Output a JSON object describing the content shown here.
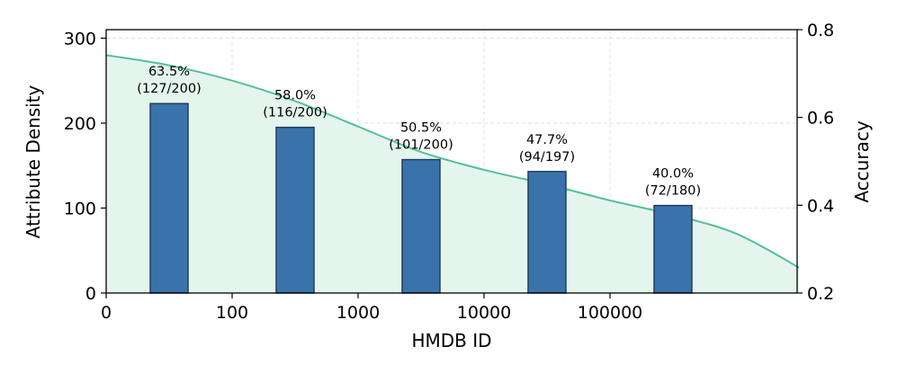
{
  "chart_data": {
    "type": "bar",
    "xlabel": "HMDB ID",
    "ylabel_left": "Attribute Density",
    "ylabel_right": "Accuracy",
    "x_ticks": [
      "0",
      "100",
      "1000",
      "10000",
      "100000"
    ],
    "y_left_ticks": [
      "0",
      "100",
      "200",
      "300"
    ],
    "y_right_ticks": [
      "0.2",
      "0.4",
      "0.6",
      "0.8"
    ],
    "ylim_left": [
      0,
      310
    ],
    "ylim_right": [
      0.2,
      0.8
    ],
    "grid": true,
    "bars": [
      {
        "x_tick_index": 0.5,
        "density": 223,
        "accuracy_label": "63.5%",
        "count_label": "(127/200)"
      },
      {
        "x_tick_index": 1.5,
        "density": 195,
        "accuracy_label": "58.0%",
        "count_label": "(116/200)"
      },
      {
        "x_tick_index": 2.5,
        "density": 157,
        "accuracy_label": "50.5%",
        "count_label": "(101/200)"
      },
      {
        "x_tick_index": 3.5,
        "density": 143,
        "accuracy_label": "47.7%",
        "count_label": "(94/197)"
      },
      {
        "x_tick_index": 4.5,
        "density": 103,
        "accuracy_label": "40.0%",
        "count_label": "(72/180)"
      }
    ],
    "density_curve": {
      "x_tick_index": [
        0,
        0.5,
        1,
        1.5,
        2,
        2.5,
        3,
        3.5,
        4,
        4.5,
        5,
        5.5
      ],
      "values": [
        280,
        268,
        250,
        226,
        196,
        166,
        145,
        128,
        109,
        92,
        70,
        30
      ]
    },
    "colors": {
      "bar_fill": "#3a73ab",
      "bar_edge": "#1f3f5e",
      "curve": "#52c09a",
      "area_fill": "#e4f5ee",
      "grid": "#d9d9d9"
    }
  }
}
